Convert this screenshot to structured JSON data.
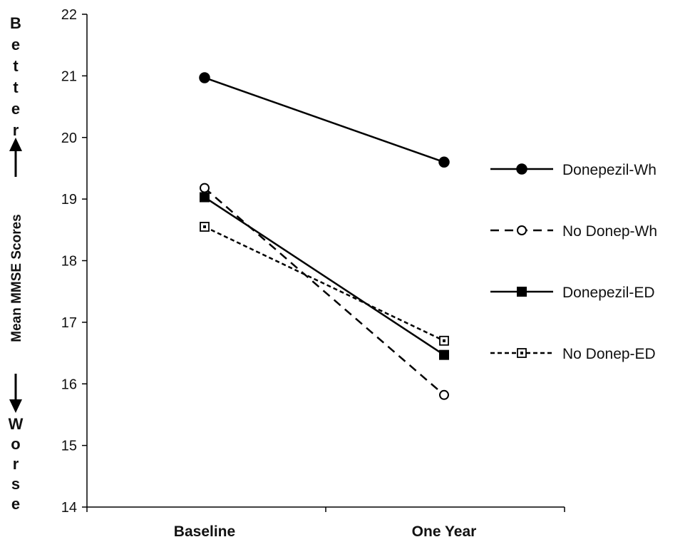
{
  "chart_data": {
    "type": "line",
    "categories": [
      "Baseline",
      "One Year"
    ],
    "ylim": [
      14,
      22
    ],
    "yticks": [
      14,
      15,
      16,
      17,
      18,
      19,
      20,
      21,
      22
    ],
    "ylabel": "Mean MMSE Scores",
    "ylabel_top": "Better",
    "ylabel_bottom": "Worse",
    "grid": false,
    "legend_position": "right",
    "series": [
      {
        "name": "Donepezil-Wh",
        "values": [
          20.97,
          19.6
        ],
        "line": "solid",
        "marker": "circle-filled",
        "color": "#000000"
      },
      {
        "name": "No Donep-Wh",
        "values": [
          19.18,
          15.82
        ],
        "line": "dashed",
        "marker": "circle-open",
        "color": "#000000"
      },
      {
        "name": "Donepezil-ED",
        "values": [
          19.03,
          16.47
        ],
        "line": "solid",
        "marker": "square-filled",
        "color": "#000000"
      },
      {
        "name": "No Donep-ED",
        "values": [
          18.55,
          16.7
        ],
        "line": "dotted",
        "marker": "square-open",
        "color": "#000000"
      }
    ]
  }
}
